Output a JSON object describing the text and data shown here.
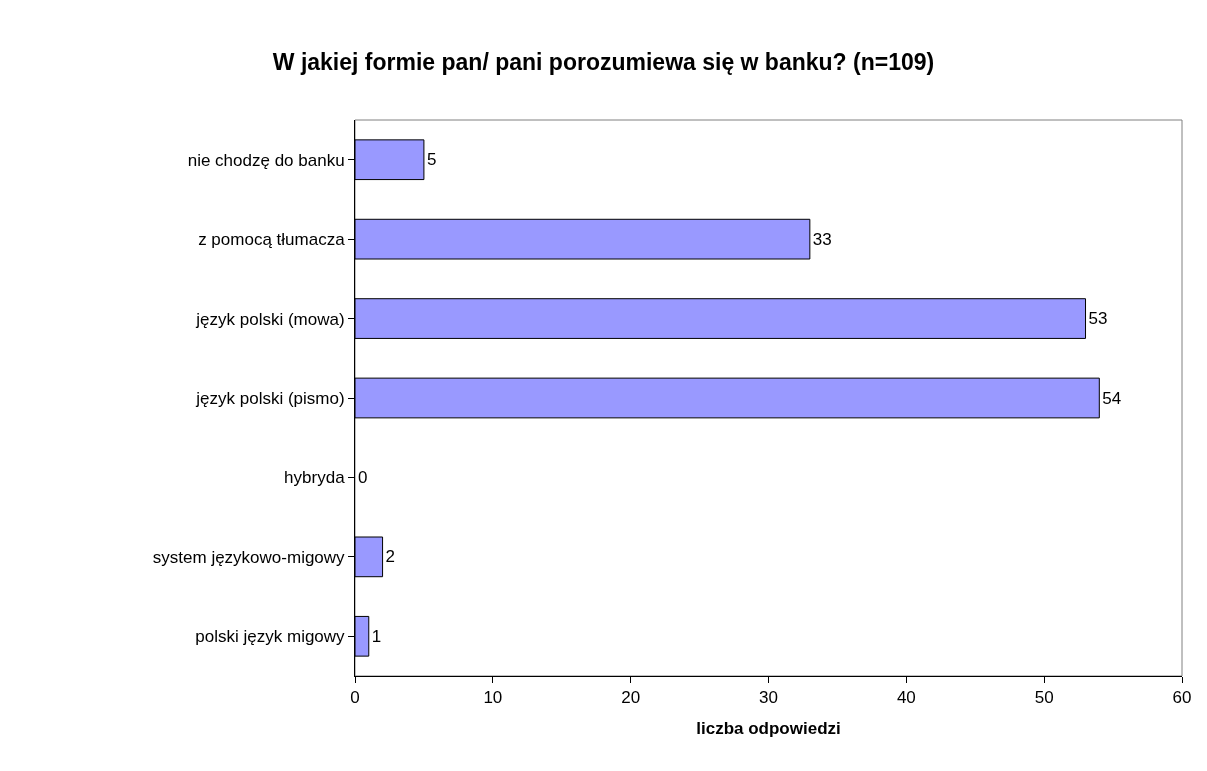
{
  "chart_data": {
    "type": "bar",
    "orientation": "horizontal",
    "title": "W jakiej formie pan/ pani porozumiewa się w banku? (n=109)",
    "xlabel": "liczba odpowiedzi",
    "categories": [
      "nie chodzę do banku",
      "z pomocą tłumacza",
      "język polski (mowa)",
      "język polski (pismo)",
      "hybryda",
      "system językowo-migowy",
      "polski język migowy"
    ],
    "values": [
      5,
      33,
      53,
      54,
      0,
      2,
      1
    ],
    "color": "#9999ff",
    "xlim": [
      0,
      60
    ],
    "xticks": [
      0,
      10,
      20,
      30,
      40,
      50,
      60
    ],
    "data_labels": true,
    "grid": false,
    "legend": false
  }
}
